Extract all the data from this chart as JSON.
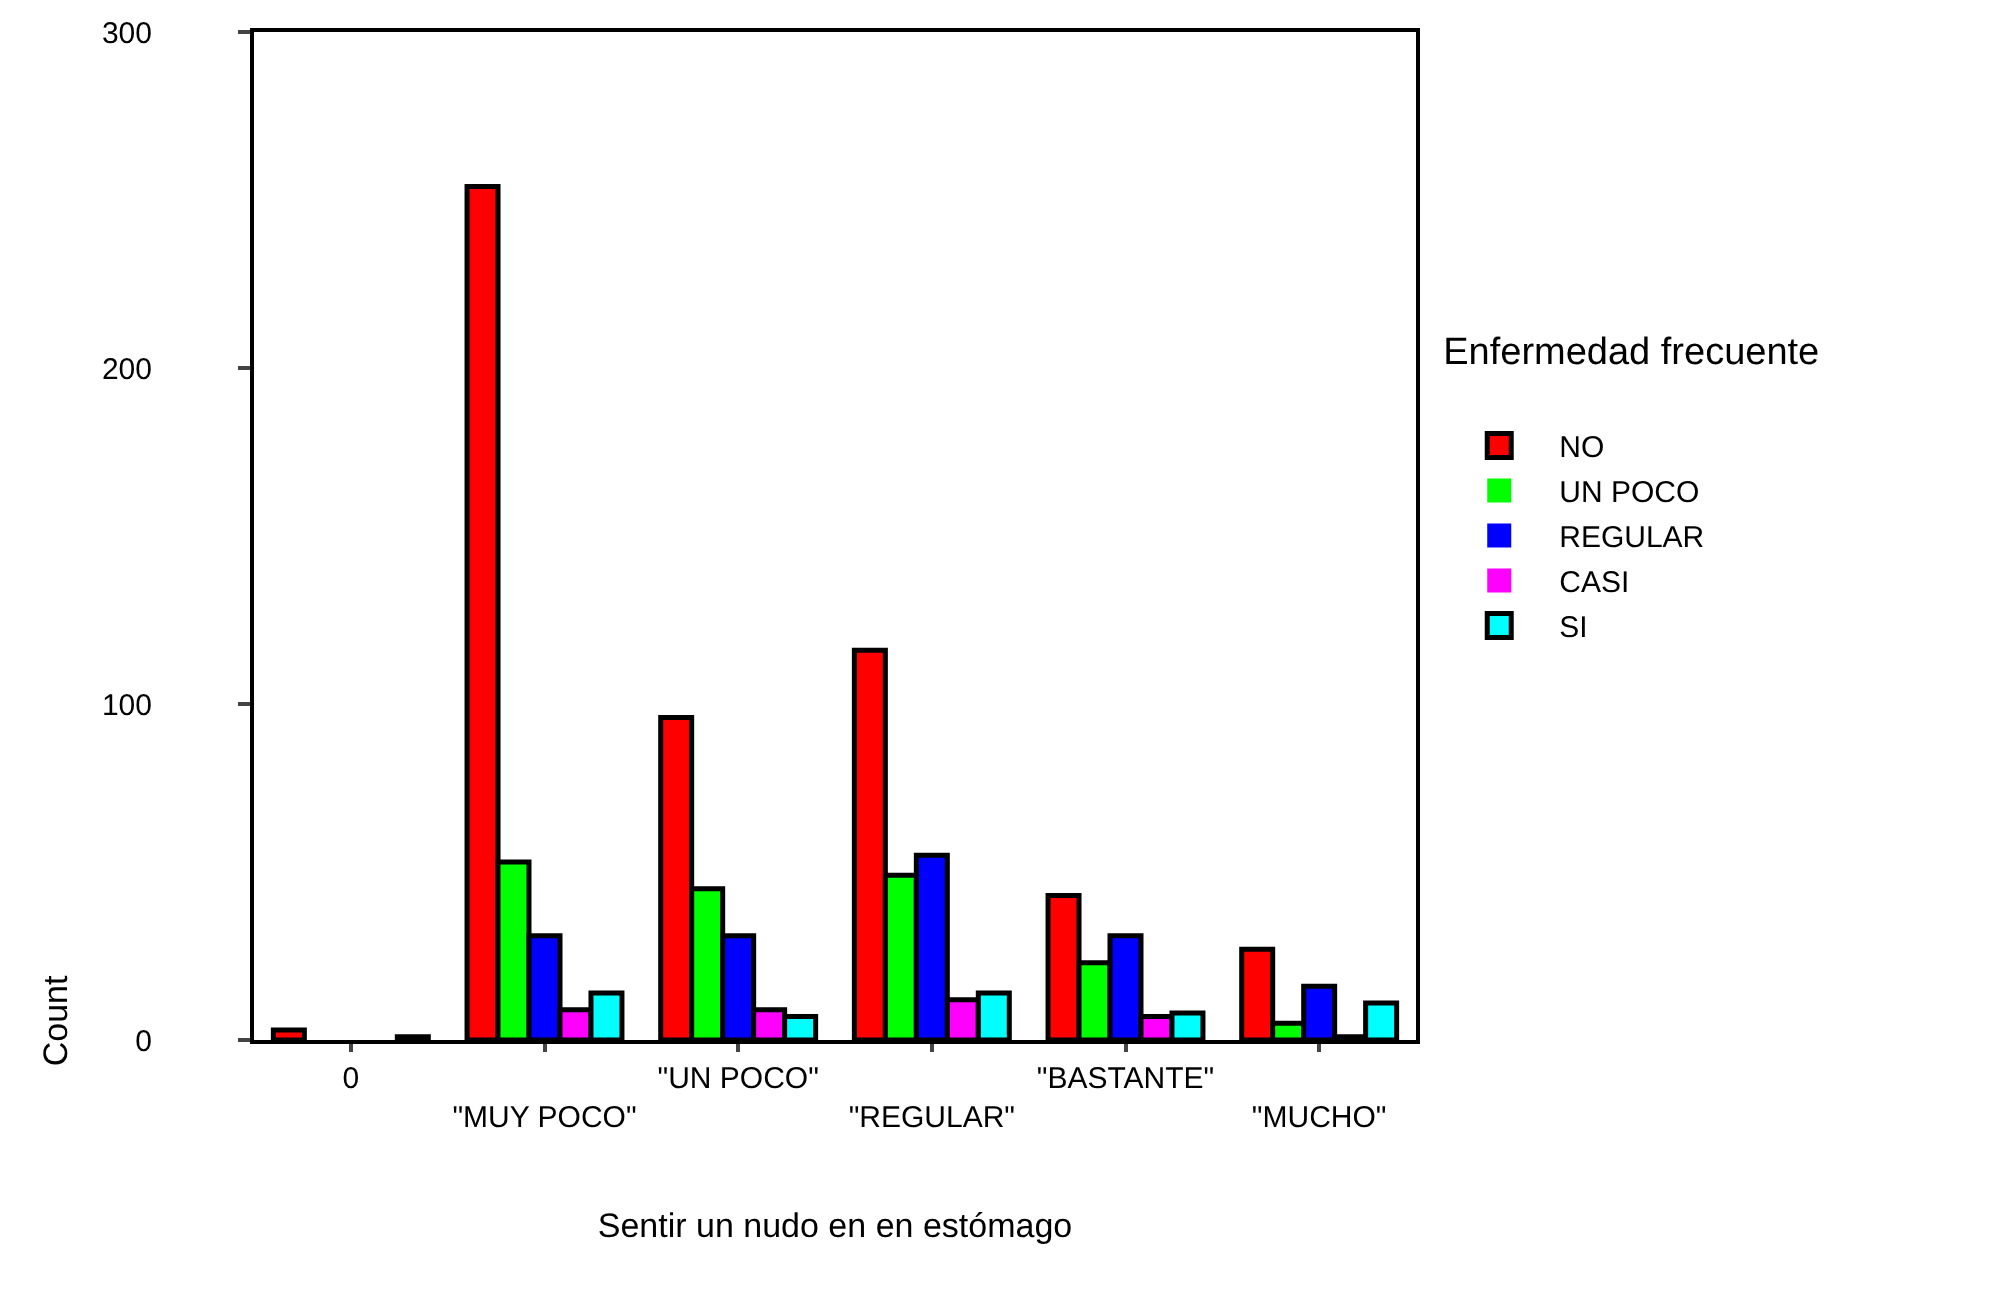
{
  "chart_data": {
    "type": "bar",
    "xlabel": "Sentir un nudo en en estómago",
    "ylabel": "Count",
    "legend_title": "Enfermedad frecuente",
    "categories": [
      "0",
      "\"MUY POCO\"",
      "\"UN POCO\"",
      "\"REGULAR\"",
      "\"BASTANTE\"",
      "\"MUCHO\""
    ],
    "series": [
      {
        "name": "NO",
        "color": "#ff0000",
        "values": [
          3,
          254,
          96,
          116,
          43,
          27
        ]
      },
      {
        "name": "UN POCO",
        "color": "#00ff00",
        "values": [
          0,
          53,
          45,
          49,
          23,
          5
        ]
      },
      {
        "name": "REGULAR",
        "color": "#0000ff",
        "values": [
          0,
          31,
          31,
          55,
          31,
          16
        ]
      },
      {
        "name": "CASI",
        "color": "#ff00ff",
        "values": [
          0,
          9,
          9,
          12,
          7,
          1
        ]
      },
      {
        "name": "SI",
        "color": "#00ffff",
        "values": [
          1,
          14,
          7,
          14,
          8,
          11
        ]
      }
    ],
    "ylim": [
      0,
      300
    ],
    "yticks": [
      0,
      100,
      200,
      300
    ],
    "grid": false,
    "legend": "right"
  }
}
